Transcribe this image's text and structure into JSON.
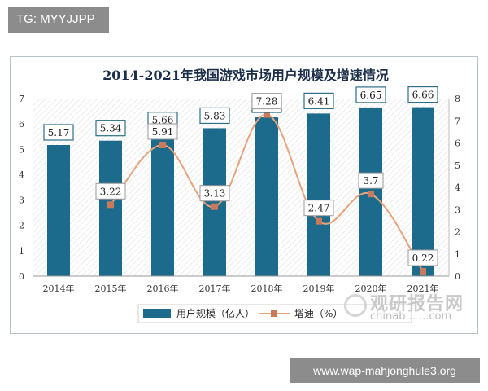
{
  "badges": {
    "tg": "TG: MYYJJPP",
    "url": "www.wap-mahjonghule3.org"
  },
  "watermark": {
    "brand": "观研报告网",
    "site": "chinab...  ...com"
  },
  "colors": {
    "bar": "#1c6b8c",
    "line": "#e8a27c",
    "marker": "#c87a5a",
    "label_border": "#2d6f86"
  },
  "chart_data": {
    "type": "bar",
    "title": "2014-2021年我国游戏市场用户规模及增速情况",
    "categories": [
      "2014年",
      "2015年",
      "2016年",
      "2017年",
      "2018年",
      "2019年",
      "2020年",
      "2021年"
    ],
    "series": [
      {
        "name": "用户规模（亿人）",
        "type": "bar",
        "axis": "left",
        "values": [
          5.17,
          5.34,
          5.66,
          5.83,
          6.26,
          6.41,
          6.65,
          6.66
        ]
      },
      {
        "name": "增速（%）",
        "type": "line",
        "axis": "right",
        "values": [
          null,
          3.22,
          5.91,
          3.13,
          7.28,
          2.47,
          3.7,
          0.22
        ]
      }
    ],
    "y_left": {
      "min": 0,
      "max": 7,
      "ticks": [
        "0",
        "1",
        "2",
        "3",
        "4",
        "5",
        "6",
        "7"
      ]
    },
    "y_right": {
      "min": 0,
      "max": 8,
      "ticks": [
        "0",
        "1",
        "2",
        "3",
        "4",
        "5",
        "6",
        "7",
        "8"
      ]
    },
    "grid": false,
    "legend_position": "bottom"
  }
}
